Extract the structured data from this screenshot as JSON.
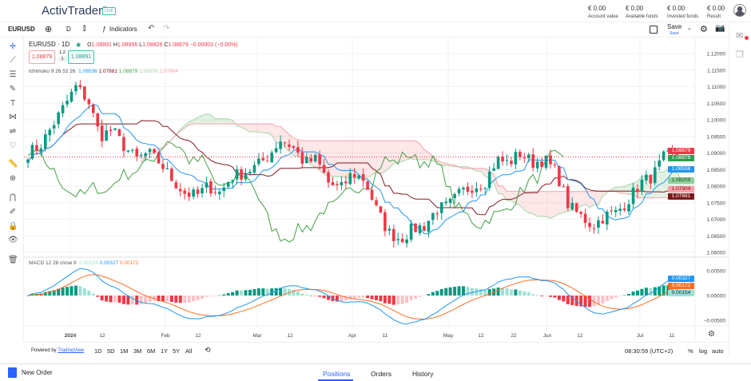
{
  "brand": {
    "name": "ActivTrader",
    "tm": "™",
    "badge": "LIVE"
  },
  "account": [
    {
      "value": "€ 0.00",
      "label": "Account value"
    },
    {
      "value": "€ 0.00",
      "label": "Available funds"
    },
    {
      "value": "€ 0.00",
      "label": "Invested funds"
    },
    {
      "value": "€ 0.00",
      "label": "Result"
    }
  ],
  "toolbar": {
    "symbol": "EURUSD",
    "interval": "D",
    "indicators": "Indicators",
    "save": "Save",
    "save_sub": "Save"
  },
  "legend": {
    "title": "EURUSD · 1D",
    "o_l": "O",
    "o": "1.08891",
    "h_l": "H",
    "h": "1.08956",
    "l_l": "L",
    "l": "1.08826",
    "c_l": "C",
    "c": "1.08879",
    "chg": "−0.00003 (−0.00%)",
    "sell": "1.08879",
    "buy": "1.08891",
    "spread_top": "1.2",
    "spread_bot": "1"
  },
  "ichimoku": {
    "label": "Ichimoku 9 26 52 26",
    "v1": "1.08536",
    "v2": "1.07881",
    "v3": "1.08879",
    "v4": "1.08209",
    "v5": "1.07904"
  },
  "macd": {
    "label": "MACD 12 26 close 9",
    "hist": "0.00154",
    "macd": "0.00327",
    "signal": "0.00172"
  },
  "price_axis": [
    "1.12000",
    "1.11500",
    "1.11000",
    "1.10500",
    "1.10000",
    "1.09500",
    "1.09000",
    "1.08500",
    "1.08000",
    "1.07500",
    "1.07000",
    "1.06500",
    "1.06000"
  ],
  "price_labels": [
    {
      "v": "1.08879",
      "c": "#f23645"
    },
    {
      "v": "1.08879",
      "c": "#2e9e4f"
    },
    {
      "v": "1.08536",
      "c": "#2196f3"
    },
    {
      "v": "1.08209",
      "c": "#8fcf9a",
      "t": "#1a4d22"
    },
    {
      "v": "1.07904",
      "c": "#f7a1a8",
      "t": "#7a1020"
    },
    {
      "v": "1.07881",
      "c": "#7a1a1a"
    }
  ],
  "macd_axis": [
    "0.00500",
    "0.00000",
    "−0.00500"
  ],
  "macd_labels": [
    {
      "v": "0.00327",
      "c": "#2196f3"
    },
    {
      "v": "0.00172",
      "c": "#ff6d20"
    },
    {
      "v": "0.00154",
      "c": "#9ee0d4",
      "t": "#124"
    }
  ],
  "date_axis": [
    {
      "t": "2024",
      "b": true
    },
    {
      "t": "12"
    },
    {
      "t": "Feb"
    },
    {
      "t": "12"
    },
    {
      "t": "Mar"
    },
    {
      "t": "12"
    },
    {
      "t": "Apr"
    },
    {
      "t": "11"
    },
    {
      "t": "May"
    },
    {
      "t": "12"
    },
    {
      "t": "22"
    },
    {
      "t": "Jun"
    },
    {
      "t": "12"
    },
    {
      "t": "Jul"
    },
    {
      "t": "11"
    }
  ],
  "bottom_bar": {
    "powered": "Powered by",
    "tv": "TradingView",
    "ranges": [
      "1D",
      "5D",
      "1M",
      "3M",
      "6M",
      "1Y",
      "5Y",
      "All"
    ],
    "clock": "08:30:59 (UTC+2)",
    "pct": "%",
    "log": "log",
    "auto": "auto"
  },
  "bottom": {
    "new_order": "New Order",
    "tabs": [
      "Positions",
      "Orders",
      "History"
    ]
  },
  "colors": {
    "up": "#089981",
    "down": "#f23645",
    "accent": "#2962ff"
  },
  "chart_data": {
    "type": "candlestick",
    "symbol": "EURUSD",
    "interval": "1D",
    "ylim": [
      1.058,
      1.123
    ],
    "waypoints": [
      1.09,
      1.092,
      1.098,
      1.104,
      1.11,
      1.106,
      1.095,
      1.097,
      1.092,
      1.088,
      1.09,
      1.087,
      1.082,
      1.078,
      1.077,
      1.08,
      1.078,
      1.083,
      1.084,
      1.086,
      1.089,
      1.094,
      1.092,
      1.087,
      1.088,
      1.081,
      1.079,
      1.084,
      1.082,
      1.073,
      1.066,
      1.064,
      1.067,
      1.068,
      1.073,
      1.074,
      1.078,
      1.08,
      1.081,
      1.088,
      1.087,
      1.09,
      1.087,
      1.088,
      1.084,
      1.074,
      1.071,
      1.068,
      1.071,
      1.072,
      1.076,
      1.081,
      1.083,
      1.089,
      1.0888
    ]
  }
}
